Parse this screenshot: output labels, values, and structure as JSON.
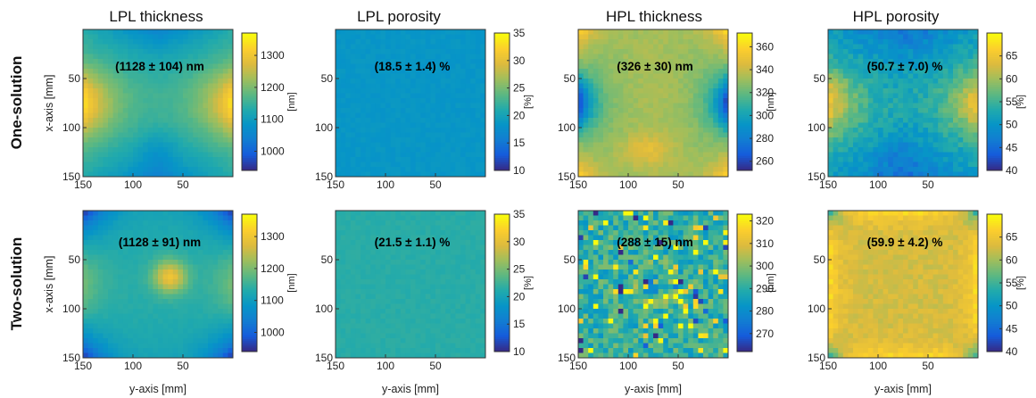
{
  "figure": {
    "column_titles": [
      "LPL thickness",
      "LPL porosity",
      "HPL thickness",
      "HPL porosity"
    ],
    "row_titles": [
      "One-solution",
      "Two-solution"
    ],
    "xlabel": "y-axis [mm]",
    "ylabel": "x-axis [mm]"
  },
  "chart_data": [
    {
      "type": "heatmap",
      "id": "r0c0",
      "row_title": "One-solution",
      "title": "LPL thickness",
      "annotation": "(1128 ± 104) nm",
      "colorbar": {
        "label": "[nm]",
        "ticks": [
          "1000",
          "1100",
          "1200",
          "1300"
        ],
        "range": [
          940,
          1370
        ]
      },
      "x_ticks": [
        "150",
        "100",
        "50"
      ],
      "y_ticks": [
        "50",
        "100",
        "150"
      ],
      "xlim": [
        150,
        0
      ],
      "ylim": [
        0,
        150
      ],
      "field": {
        "pattern": "saddle",
        "center": 1128,
        "amplitude": 200,
        "noise": 0.05,
        "seed": 11
      }
    },
    {
      "type": "heatmap",
      "id": "r0c1",
      "row_title": "One-solution",
      "title": "LPL porosity",
      "annotation": "(18.5 ± 1.4) %",
      "colorbar": {
        "label": "[%]",
        "ticks": [
          "10",
          "15",
          "20",
          "25",
          "30",
          "35"
        ],
        "range": [
          10,
          35
        ]
      },
      "x_ticks": [
        "150",
        "100",
        "50"
      ],
      "y_ticks": [
        "50",
        "100",
        "150"
      ],
      "xlim": [
        150,
        0
      ],
      "ylim": [
        0,
        150
      ],
      "field": {
        "pattern": "flat",
        "center": 18.5,
        "amplitude": 1.4,
        "noise": 0.6,
        "seed": 23
      }
    },
    {
      "type": "heatmap",
      "id": "r0c2",
      "row_title": "One-solution",
      "title": "HPL thickness",
      "annotation": "(326 ± 30) nm",
      "colorbar": {
        "label": "[nm]",
        "ticks": [
          "260",
          "280",
          "300",
          "320",
          "340",
          "360"
        ],
        "range": [
          252,
          372
        ]
      },
      "x_ticks": [
        "150",
        "100",
        "50"
      ],
      "y_ticks": [
        "50",
        "100",
        "150"
      ],
      "xlim": [
        150,
        0
      ],
      "ylim": [
        0,
        150
      ],
      "field": {
        "pattern": "hourglass",
        "center": 326,
        "amplitude": 60,
        "noise": 0.1,
        "seed": 37
      }
    },
    {
      "type": "heatmap",
      "id": "r0c3",
      "row_title": "One-solution",
      "title": "HPL porosity",
      "annotation": "(50.7 ± 7.0) %",
      "colorbar": {
        "label": "[%]",
        "ticks": [
          "40",
          "45",
          "50",
          "55",
          "60",
          "65"
        ],
        "range": [
          40,
          70
        ]
      },
      "x_ticks": [
        "150",
        "100",
        "50"
      ],
      "y_ticks": [
        "50",
        "100",
        "150"
      ],
      "xlim": [
        150,
        0
      ],
      "ylim": [
        0,
        150
      ],
      "field": {
        "pattern": "saddle",
        "center": 50.7,
        "amplitude": 14,
        "noise": 0.25,
        "seed": 41
      }
    },
    {
      "type": "heatmap",
      "id": "r1c0",
      "row_title": "Two-solution",
      "title": "LPL thickness",
      "annotation": "(1128 ± 91) nm",
      "colorbar": {
        "label": "[nm]",
        "ticks": [
          "1000",
          "1100",
          "1200",
          "1300"
        ],
        "range": [
          940,
          1370
        ]
      },
      "x_ticks": [
        "150",
        "100",
        "50"
      ],
      "y_ticks": [
        "50",
        "100",
        "150"
      ],
      "xlim": [
        150,
        0
      ],
      "ylim": [
        0,
        150
      ],
      "field": {
        "pattern": "centerhot",
        "center": 1128,
        "amplitude": 180,
        "noise": 0.05,
        "seed": 53
      }
    },
    {
      "type": "heatmap",
      "id": "r1c1",
      "row_title": "Two-solution",
      "title": "LPL porosity",
      "annotation": "(21.5 ± 1.1) %",
      "colorbar": {
        "label": "[%]",
        "ticks": [
          "10",
          "15",
          "20",
          "25",
          "30",
          "35"
        ],
        "range": [
          10,
          35
        ]
      },
      "x_ticks": [
        "150",
        "100",
        "50"
      ],
      "y_ticks": [
        "50",
        "100",
        "150"
      ],
      "xlim": [
        150,
        0
      ],
      "ylim": [
        0,
        150
      ],
      "field": {
        "pattern": "flat",
        "center": 21.5,
        "amplitude": 1.1,
        "noise": 0.6,
        "seed": 67
      }
    },
    {
      "type": "heatmap",
      "id": "r1c2",
      "row_title": "Two-solution",
      "title": "HPL thickness",
      "annotation": "(288 ± 15) nm",
      "colorbar": {
        "label": "[nm]",
        "ticks": [
          "270",
          "280",
          "290",
          "300",
          "310",
          "320"
        ],
        "range": [
          262,
          323
        ]
      },
      "x_ticks": [
        "150",
        "100",
        "50"
      ],
      "y_ticks": [
        "50",
        "100",
        "150"
      ],
      "xlim": [
        150,
        0
      ],
      "ylim": [
        0,
        150
      ],
      "field": {
        "pattern": "noisy",
        "center": 288,
        "amplitude": 30,
        "noise": 0.6,
        "seed": 71
      }
    },
    {
      "type": "heatmap",
      "id": "r1c3",
      "row_title": "Two-solution",
      "title": "HPL porosity",
      "annotation": "(59.9 ± 4.2) %",
      "colorbar": {
        "label": "[%]",
        "ticks": [
          "40",
          "45",
          "50",
          "55",
          "60",
          "65"
        ],
        "range": [
          40,
          70
        ]
      },
      "x_ticks": [
        "150",
        "100",
        "50"
      ],
      "y_ticks": [
        "50",
        "100",
        "150"
      ],
      "xlim": [
        150,
        0
      ],
      "ylim": [
        0,
        150
      ],
      "field": {
        "pattern": "edgehot",
        "center": 59.9,
        "amplitude": 8.4,
        "noise": 0.3,
        "seed": 89
      }
    }
  ]
}
